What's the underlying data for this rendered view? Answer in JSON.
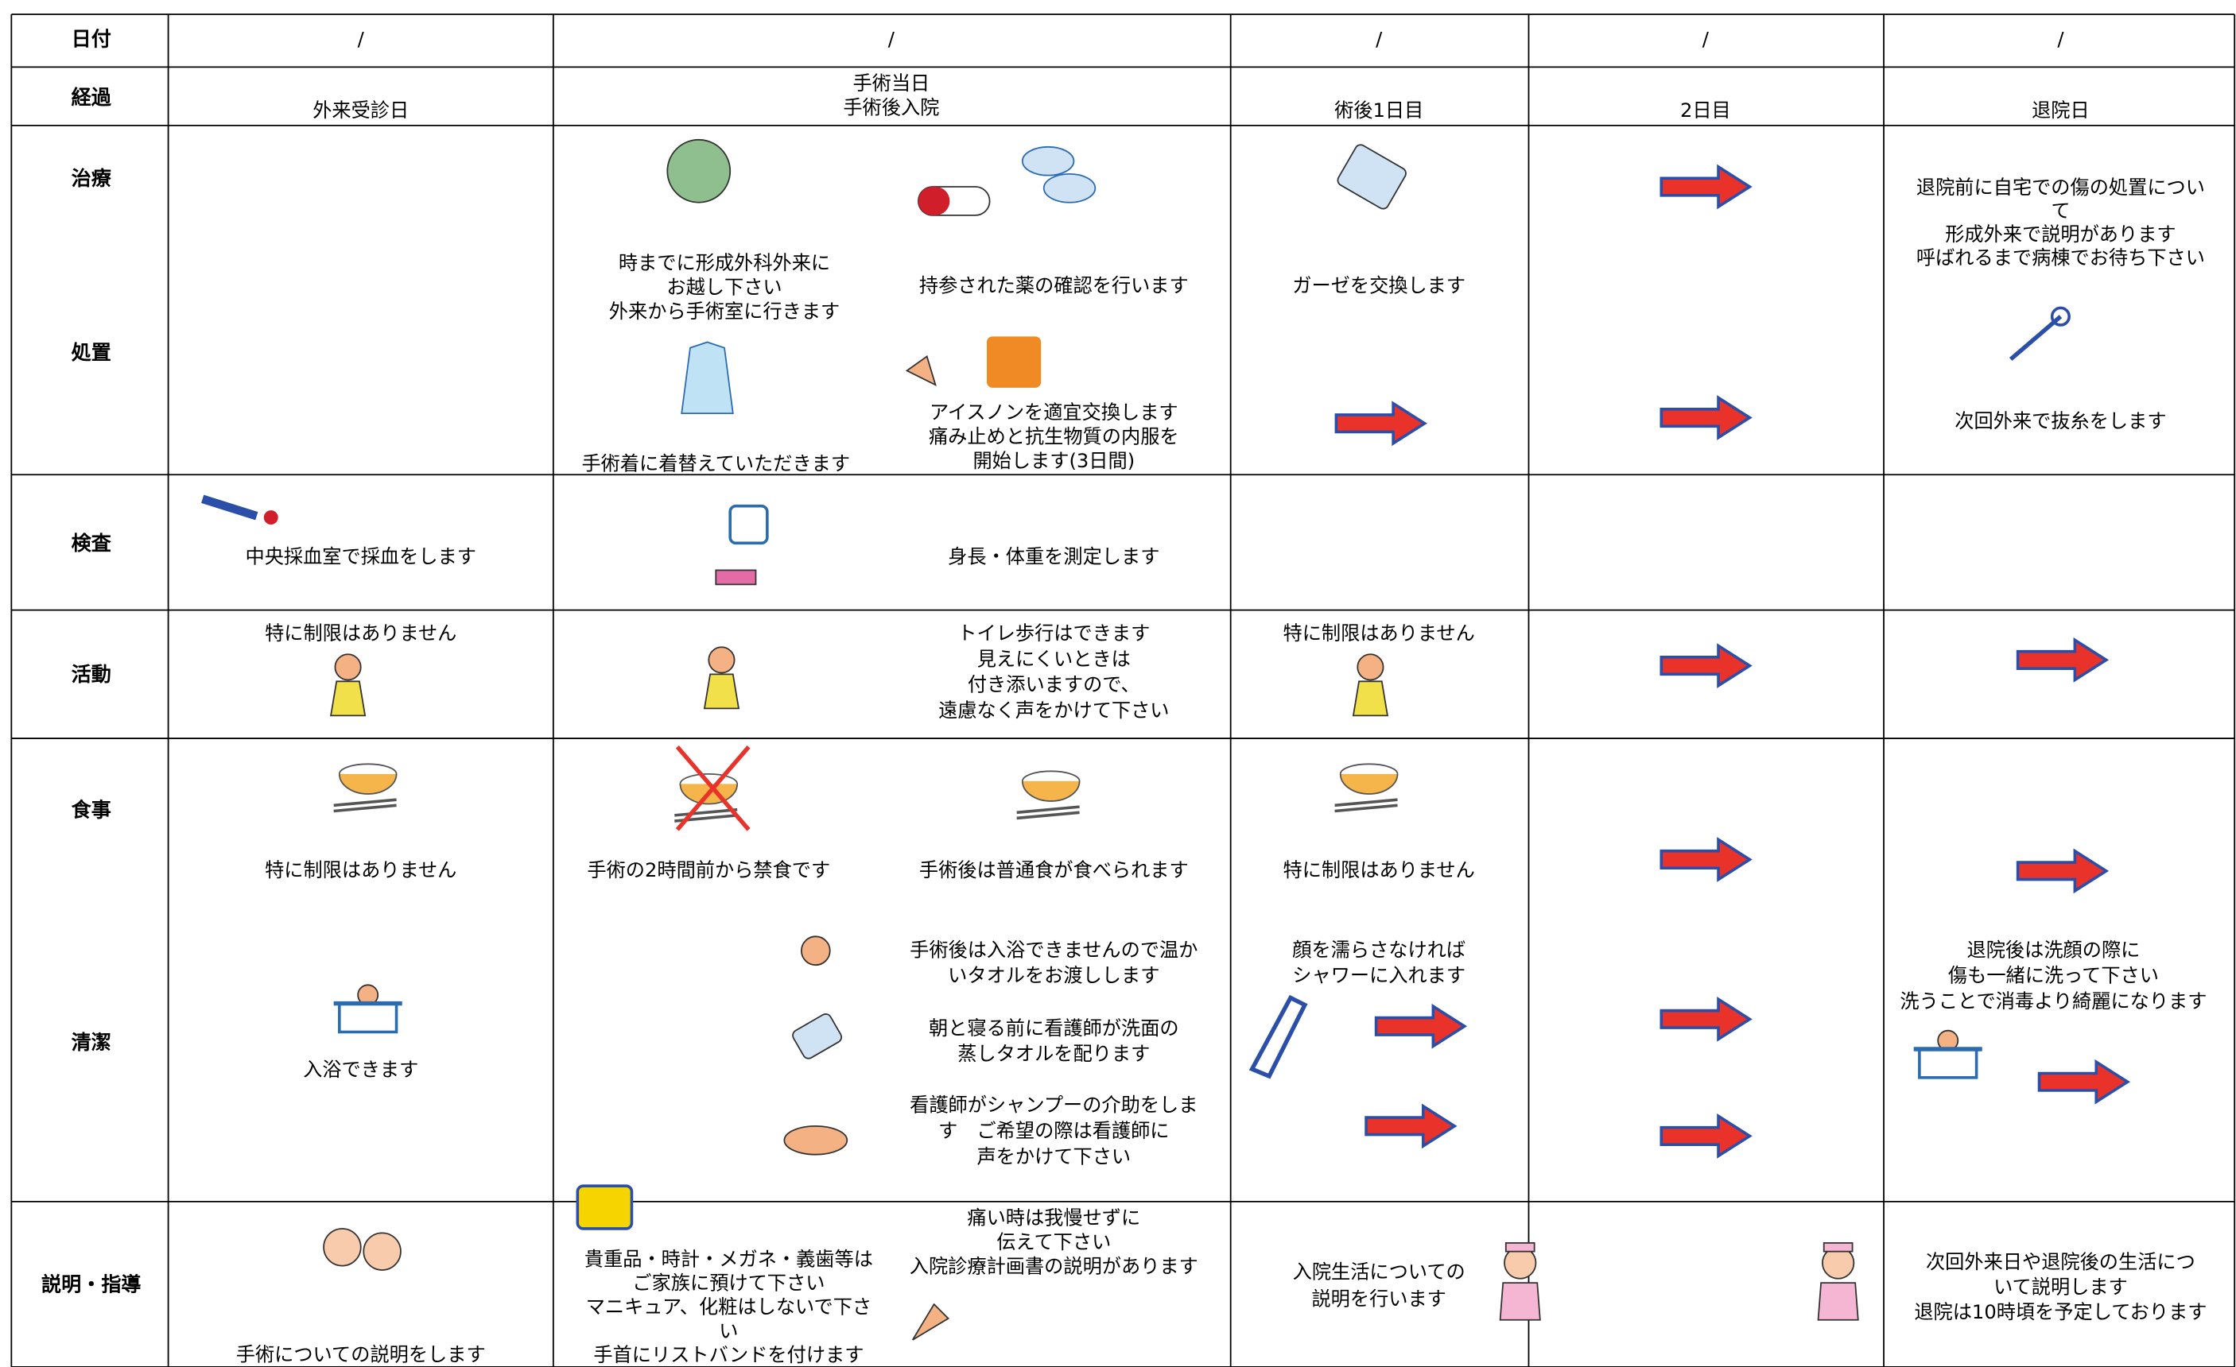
{
  "row_labels": [
    "日付",
    "経過",
    "治療",
    "処置",
    "検査",
    "活動",
    "食事",
    "清潔",
    "説明・指導"
  ],
  "date_marks": [
    "/",
    "/",
    "/",
    "/",
    "/"
  ],
  "cells": [
    [
      "外来受診日"
    ],
    [
      "手術当日",
      "手術後入院"
    ],
    [
      "術後1日目"
    ],
    [
      "2日目"
    ],
    [
      "退院日"
    ],
    [
      "時までに形成外科外来に",
      "お越し下さい",
      "外来から手術室に行きます"
    ],
    [
      "持参された薬の確認を行います"
    ],
    [
      "手術着に着替えていただきます"
    ],
    [
      "アイスノンを適宜交換します",
      "痛み止めと抗生物質の内服を",
      "開始します(3日間)"
    ],
    [
      "ガーゼを交換します"
    ],
    [
      "退院前に自宅での傷の処置につい",
      "て",
      "形成外来で説明があります",
      "呼ばれるまで病棟でお待ち下さい"
    ],
    [
      "次回外来で抜糸をします"
    ],
    [
      "中央採血室で採血をします"
    ],
    [
      "身長・体重を測定します"
    ],
    [
      "特に制限はありません"
    ],
    [
      "トイレ歩行はできます",
      "見えにくいときは",
      "付き添いますので、",
      "遠慮なく声をかけて下さい"
    ],
    [
      "特に制限はありません"
    ],
    [
      "特に制限はありません"
    ],
    [
      "手術の2時間前から禁食です"
    ],
    [
      "手術後は普通食が食べられます"
    ],
    [
      "特に制限はありません"
    ],
    [
      "入浴できます"
    ],
    [
      "手術後は入浴できませんので温か",
      "いタオルをお渡しします"
    ],
    [
      "朝と寝る前に看護師が洗面の",
      "蒸しタオルを配ります"
    ],
    [
      "看護師がシャンプーの介助をしま",
      "す　ご希望の際は看護師に",
      "声をかけて下さい"
    ],
    [
      "顔を濡らさなければ",
      "シャワーに入れます"
    ],
    [
      "退院後は洗顔の際に",
      "傷も一緒に洗って下さい",
      "洗うことで消毒より綺麗になります"
    ],
    [
      "手術についての説明をします"
    ],
    [
      "貴重品・時計・メガネ・義歯等は",
      "ご家族に預けて下さい",
      "マニキュア、化粧はしないで下さ",
      "い",
      "手首にリストバンドを付けます"
    ],
    [
      "痛い時は我慢せずに",
      "伝えて下さい",
      "入院診療計画書の説明があります"
    ],
    [
      "入院生活についての",
      "説明を行います"
    ],
    [
      "次回外来日や退院後の生活につ",
      "いて説明します",
      "退院は10時頃を予定しております"
    ]
  ]
}
